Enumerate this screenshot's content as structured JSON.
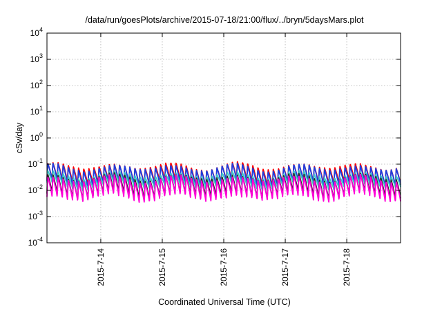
{
  "chart_data": {
    "type": "line",
    "title": "/data/run/goesPlots/archive/2015-07-18/21:00/flux/../bryn/5daysMars.plot",
    "xlabel": "Coordinated Universal Time (UTC)",
    "ylabel": "cSv/day",
    "yscale": "log",
    "ylim": [
      0.0001,
      10000
    ],
    "xlim": [
      "2015-07-13 03:00",
      "2015-07-18 21:00"
    ],
    "grid": true,
    "x_ticks": [
      {
        "date": "2015-07-14 00:00",
        "label": "2015-7-14"
      },
      {
        "date": "2015-07-15 00:00",
        "label": "2015-7-15"
      },
      {
        "date": "2015-07-16 00:00",
        "label": "2015-7-16"
      },
      {
        "date": "2015-07-17 00:00",
        "label": "2015-7-17"
      },
      {
        "date": "2015-07-18 00:00",
        "label": "2015-7-18"
      }
    ],
    "y_ticks": [
      {
        "value": 0.0001,
        "base": "10",
        "exp": "-4"
      },
      {
        "value": 0.001,
        "base": "10",
        "exp": "-3"
      },
      {
        "value": 0.01,
        "base": "10",
        "exp": "-2"
      },
      {
        "value": 0.1,
        "base": "10",
        "exp": "-1"
      },
      {
        "value": 1,
        "base": "10",
        "exp": "0"
      },
      {
        "value": 10,
        "base": "10",
        "exp": "1"
      },
      {
        "value": 100,
        "base": "10",
        "exp": "2"
      },
      {
        "value": 1000,
        "base": "10",
        "exp": "3"
      },
      {
        "value": 10000,
        "base": "10",
        "exp": "4"
      }
    ],
    "sawtooth_period_hours": 2,
    "series": [
      {
        "color": "#ff0000",
        "peak": 0.085,
        "trough": 0.018
      },
      {
        "color": "#1c3fe0",
        "peak": 0.075,
        "trough": 0.016
      },
      {
        "color": "#3fc7c9",
        "peak": 0.04,
        "trough": 0.014
      },
      {
        "color": "#2a2a2a",
        "peak": 0.032,
        "trough": 0.0058
      },
      {
        "color": "#ff00d8",
        "peak": 0.028,
        "trough": 0.0048
      }
    ]
  }
}
